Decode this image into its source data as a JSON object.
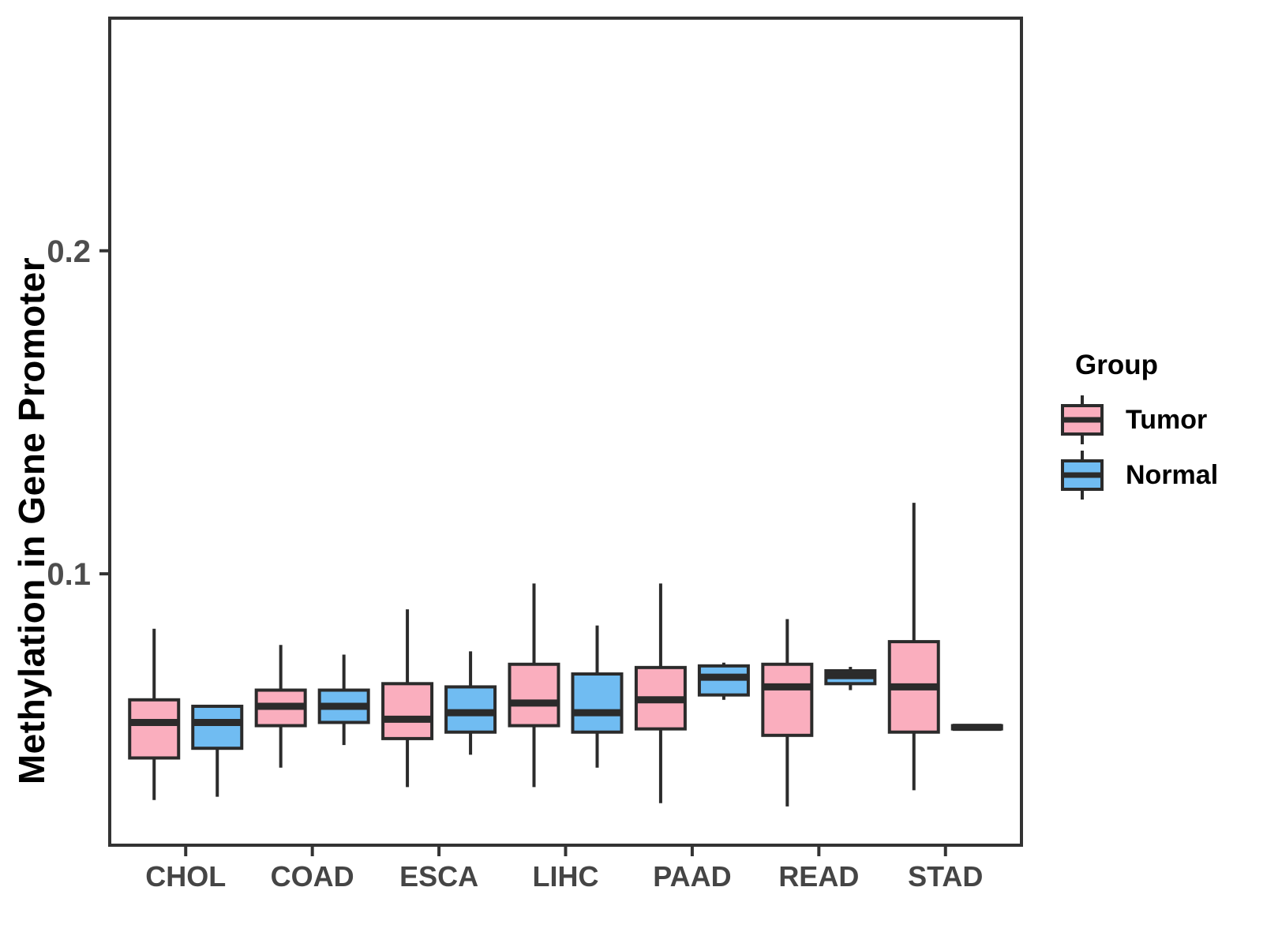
{
  "y_axis": {
    "title": "Methylation in Gene Promoter",
    "tick_labels": [
      "0.1",
      "0.2"
    ]
  },
  "x_axis": {
    "tick_labels": [
      "CHOL",
      "COAD",
      "ESCA",
      "LIHC",
      "PAAD",
      "READ",
      "STAD"
    ]
  },
  "legend": {
    "title": "Group",
    "items": [
      {
        "label": "Tumor",
        "color": "#FAAEBE"
      },
      {
        "label": "Normal",
        "color": "#70BCF2"
      }
    ]
  },
  "chart_data": {
    "type": "boxplot",
    "title": "",
    "xlabel": "",
    "ylabel": "Methylation in Gene Promoter",
    "categories": [
      "CHOL",
      "COAD",
      "ESCA",
      "LIHC",
      "PAAD",
      "READ",
      "STAD"
    ],
    "legend_title": "Group",
    "legend_position": "right",
    "grid": false,
    "ylim": [
      0.016,
      0.272
    ],
    "yticks": [
      0.1,
      0.2
    ],
    "series": [
      {
        "name": "Tumor",
        "color": "#FAAEBE",
        "boxes": [
          {
            "category": "CHOL",
            "min": 0.03,
            "q1": 0.043,
            "median": 0.054,
            "q3": 0.061,
            "max": 0.083
          },
          {
            "category": "COAD",
            "min": 0.04,
            "q1": 0.053,
            "median": 0.059,
            "q3": 0.064,
            "max": 0.078
          },
          {
            "category": "ESCA",
            "min": 0.034,
            "q1": 0.049,
            "median": 0.055,
            "q3": 0.066,
            "max": 0.089
          },
          {
            "category": "LIHC",
            "min": 0.034,
            "q1": 0.053,
            "median": 0.06,
            "q3": 0.072,
            "max": 0.097
          },
          {
            "category": "PAAD",
            "min": 0.029,
            "q1": 0.052,
            "median": 0.061,
            "q3": 0.071,
            "max": 0.097
          },
          {
            "category": "READ",
            "min": 0.028,
            "q1": 0.05,
            "median": 0.065,
            "q3": 0.072,
            "max": 0.086
          },
          {
            "category": "STAD",
            "min": 0.033,
            "q1": 0.051,
            "median": 0.065,
            "q3": 0.079,
            "max": 0.122
          }
        ]
      },
      {
        "name": "Normal",
        "color": "#70BCF2",
        "boxes": [
          {
            "category": "CHOL",
            "min": 0.031,
            "q1": 0.046,
            "median": 0.054,
            "q3": 0.059,
            "max": 0.059
          },
          {
            "category": "COAD",
            "min": 0.047,
            "q1": 0.054,
            "median": 0.059,
            "q3": 0.064,
            "max": 0.075
          },
          {
            "category": "ESCA",
            "min": 0.044,
            "q1": 0.051,
            "median": 0.057,
            "q3": 0.065,
            "max": 0.076
          },
          {
            "category": "LIHC",
            "min": 0.04,
            "q1": 0.051,
            "median": 0.057,
            "q3": 0.069,
            "max": 0.084
          },
          {
            "category": "PAAD",
            "min": 0.061,
            "q1": 0.0625,
            "median": 0.068,
            "q3": 0.0715,
            "max": 0.0725
          },
          {
            "category": "READ",
            "min": 0.064,
            "q1": 0.066,
            "median": 0.0685,
            "q3": 0.07,
            "max": 0.0712
          },
          {
            "category": "STAD",
            "min": 0.0515,
            "q1": 0.052,
            "median": 0.0525,
            "q3": 0.053,
            "max": 0.0535
          }
        ]
      }
    ],
    "styles": {
      "box_border_color": "#2b2b2b",
      "panel_border_color": "#333333",
      "y_tick_label_color": "#4d4d4d",
      "x_tick_label_color": "#454545",
      "background": "#ffffff"
    }
  }
}
